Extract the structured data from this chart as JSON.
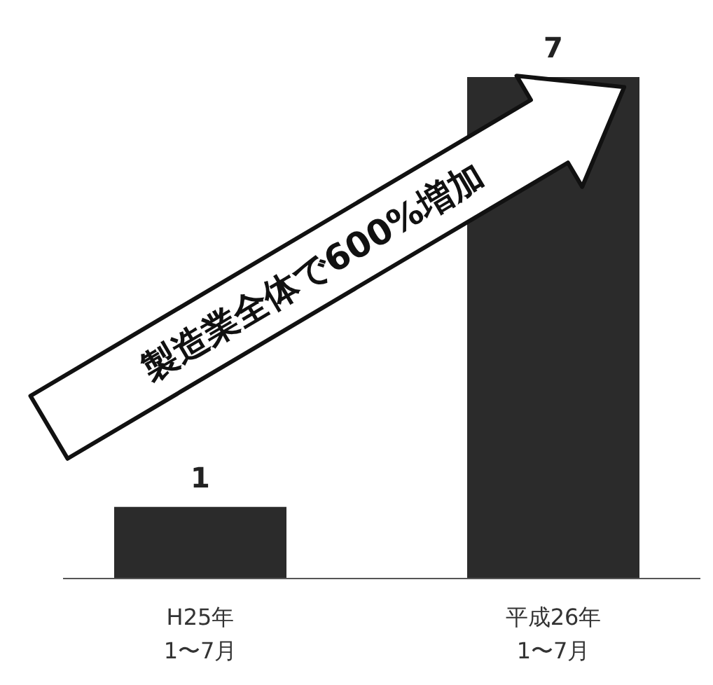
{
  "chart_data": {
    "type": "bar",
    "categories": [
      "H25年\n1〜7月",
      "平成26年\n1〜7月"
    ],
    "values": [
      1,
      7
    ],
    "color": "#2b2b2b",
    "data_labels": true,
    "annotations": [
      "製造業全体で600%増加"
    ]
  }
}
